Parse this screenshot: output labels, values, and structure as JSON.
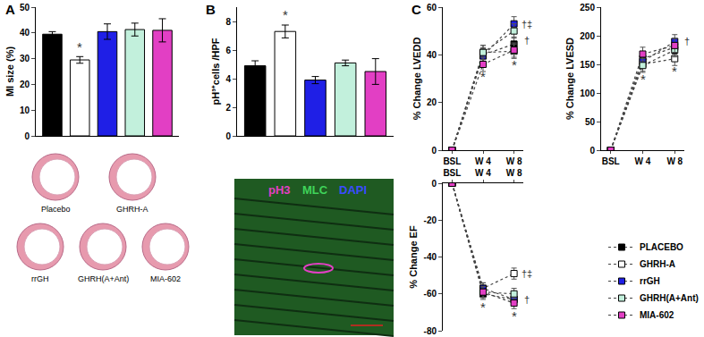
{
  "chart_data": [
    {
      "type": "bar",
      "panel": "A",
      "y_label": "MI size (%)",
      "categories": [
        "PLACEBO",
        "GHRH-A",
        "rrGH",
        "GHRH(A+Ant)",
        "MIA-602"
      ],
      "values": [
        39.5,
        29.5,
        40.5,
        41.3,
        41
      ],
      "errors": [
        1,
        1.3,
        3,
        2.5,
        4.5
      ],
      "colors": [
        "#000000",
        "#ffffff",
        "#1f1fe6",
        "#c2f0dc",
        "#e23fc4"
      ],
      "ylim": [
        0,
        50
      ],
      "yticks": [
        0,
        10,
        20,
        30,
        40,
        50
      ],
      "tick_labels": "y",
      "annotations": [
        {
          "text": "*",
          "category": "GHRH-A",
          "y": 31
        }
      ],
      "sections": [
        "Placebo",
        "GHRH-A",
        "rrGH",
        "GHRH(A+Ant)",
        "MIA-602"
      ]
    },
    {
      "type": "bar",
      "panel": "B",
      "y_label": "pH³⁺cells /HPF",
      "categories": [
        "PLACEBO",
        "GHRH-A",
        "rrGH",
        "GHRH(A+Ant)",
        "MIA-602"
      ],
      "values": [
        4.9,
        7.3,
        3.9,
        5.1,
        4.5
      ],
      "errors": [
        0.35,
        0.45,
        0.25,
        0.2,
        0.9
      ],
      "colors": [
        "#000000",
        "#ffffff",
        "#1f1fe6",
        "#c2f0dc",
        "#e23fc4"
      ],
      "ylim": [
        0,
        9
      ],
      "yticks": [
        0,
        2,
        4,
        6,
        8
      ],
      "tick_labels": "y",
      "annotations": [
        {
          "text": "*",
          "category": "GHRH-A",
          "y": 7.8
        }
      ],
      "stain_labels": [
        {
          "text": "pH3",
          "color": "#e23fc4"
        },
        {
          "text": "MLC",
          "color": "#3fd35a"
        },
        {
          "text": "DAPI",
          "color": "#3a4cff"
        }
      ]
    },
    {
      "type": "line",
      "panel": "C",
      "y_label": "% Change LVEDD",
      "categories": [
        "BSL",
        "W 4",
        "W 8"
      ],
      "ylim": [
        0,
        60
      ],
      "yticks": [
        0,
        20,
        40,
        60
      ],
      "legend": "bottom right",
      "series": [
        {
          "name": "PLACEBO",
          "color": "#000000",
          "marker": "square",
          "line_style": "dot",
          "values": [
            0,
            40,
            44.5
          ],
          "errors": [
            0,
            3,
            3
          ]
        },
        {
          "name": "GHRH-A",
          "color": "#ffffff",
          "marker": "square",
          "line_style": "dot",
          "values": [
            0,
            41,
            41.5
          ],
          "errors": [
            0,
            3,
            3
          ]
        },
        {
          "name": "rrGH",
          "color": "#1f1fe6",
          "marker": "square",
          "line_style": "dot",
          "values": [
            0,
            39.5,
            53
          ],
          "errors": [
            0,
            3,
            3
          ]
        },
        {
          "name": "GHRH(A+Ant)",
          "color": "#c2f0dc",
          "marker": "square",
          "line_style": "dot",
          "values": [
            0,
            41,
            50
          ],
          "errors": [
            0,
            3,
            3
          ]
        },
        {
          "name": "MIA-602",
          "color": "#e23fc4",
          "marker": "square",
          "line_style": "dot",
          "values": [
            0,
            36,
            42
          ],
          "errors": [
            0,
            3,
            3
          ]
        }
      ],
      "annotations": [
        {
          "text": "*",
          "category": "W 4",
          "y": 31
        },
        {
          "text": "*",
          "category": "W 8",
          "y": 36
        },
        {
          "text": "†‡",
          "category": "W 8",
          "y": 53
        },
        {
          "text": "†",
          "category": "W 8",
          "y": 46
        }
      ]
    },
    {
      "type": "line",
      "y_label": "% Change LVESD",
      "categories": [
        "BSL",
        "W 4",
        "W 8"
      ],
      "ylim": [
        0,
        250
      ],
      "yticks": [
        0,
        50,
        100,
        150,
        200,
        250
      ],
      "series": [
        {
          "name": "PLACEBO",
          "color": "#000000",
          "marker": "square",
          "line_style": "dot",
          "values": [
            0,
            160,
            180
          ],
          "errors": [
            0,
            12,
            12
          ]
        },
        {
          "name": "GHRH-A",
          "color": "#ffffff",
          "marker": "square",
          "line_style": "dot",
          "values": [
            0,
            150,
            160
          ],
          "errors": [
            0,
            12,
            12
          ]
        },
        {
          "name": "rrGH",
          "color": "#1f1fe6",
          "marker": "square",
          "line_style": "dot",
          "values": [
            0,
            155,
            190
          ],
          "errors": [
            0,
            12,
            12
          ]
        },
        {
          "name": "GHRH(A+Ant)",
          "color": "#c2f0dc",
          "marker": "square",
          "line_style": "dot",
          "values": [
            0,
            148,
            175
          ],
          "errors": [
            0,
            12,
            12
          ]
        },
        {
          "name": "MIA-602",
          "color": "#e23fc4",
          "marker": "square",
          "line_style": "dot",
          "values": [
            0,
            168,
            183
          ],
          "errors": [
            0,
            12,
            12
          ]
        }
      ],
      "annotations": [
        {
          "text": "*",
          "category": "W 4",
          "y": 125
        },
        {
          "text": "*",
          "category": "W 8",
          "y": 138
        },
        {
          "text": "†",
          "category": "W 8",
          "y": 190
        }
      ]
    },
    {
      "type": "line",
      "y_label": "% Change EF",
      "categories": [
        "BSL",
        "W 4",
        "W 8"
      ],
      "ylim": [
        -80,
        0
      ],
      "yticks": [
        0,
        -20,
        -40,
        -60,
        -80
      ],
      "series": [
        {
          "name": "PLACEBO",
          "color": "#000000",
          "marker": "square",
          "line_style": "dot",
          "values": [
            0,
            -60,
            -63
          ],
          "errors": [
            0,
            3,
            3
          ]
        },
        {
          "name": "GHRH-A",
          "color": "#ffffff",
          "marker": "square",
          "line_style": "dot",
          "values": [
            0,
            -57,
            -49
          ],
          "errors": [
            0,
            3,
            3
          ]
        },
        {
          "name": "rrGH",
          "color": "#1f1fe6",
          "marker": "square",
          "line_style": "dot",
          "values": [
            0,
            -57,
            -63
          ],
          "errors": [
            0,
            3,
            3
          ]
        },
        {
          "name": "GHRH(A+Ant)",
          "color": "#c2f0dc",
          "marker": "square",
          "line_style": "dot",
          "values": [
            0,
            -59,
            -60
          ],
          "errors": [
            0,
            3,
            3
          ]
        },
        {
          "name": "MIA-602",
          "color": "#e23fc4",
          "marker": "square",
          "line_style": "dot",
          "values": [
            0,
            -59,
            -65
          ],
          "errors": [
            0,
            3,
            3
          ]
        }
      ],
      "annotations": [
        {
          "text": "*",
          "category": "W 4",
          "y": -67
        },
        {
          "text": "*",
          "category": "W 8",
          "y": -72
        },
        {
          "text": "†‡",
          "category": "W 8",
          "y": -49
        },
        {
          "text": "†",
          "category": "W 8",
          "y": -63
        }
      ]
    }
  ]
}
